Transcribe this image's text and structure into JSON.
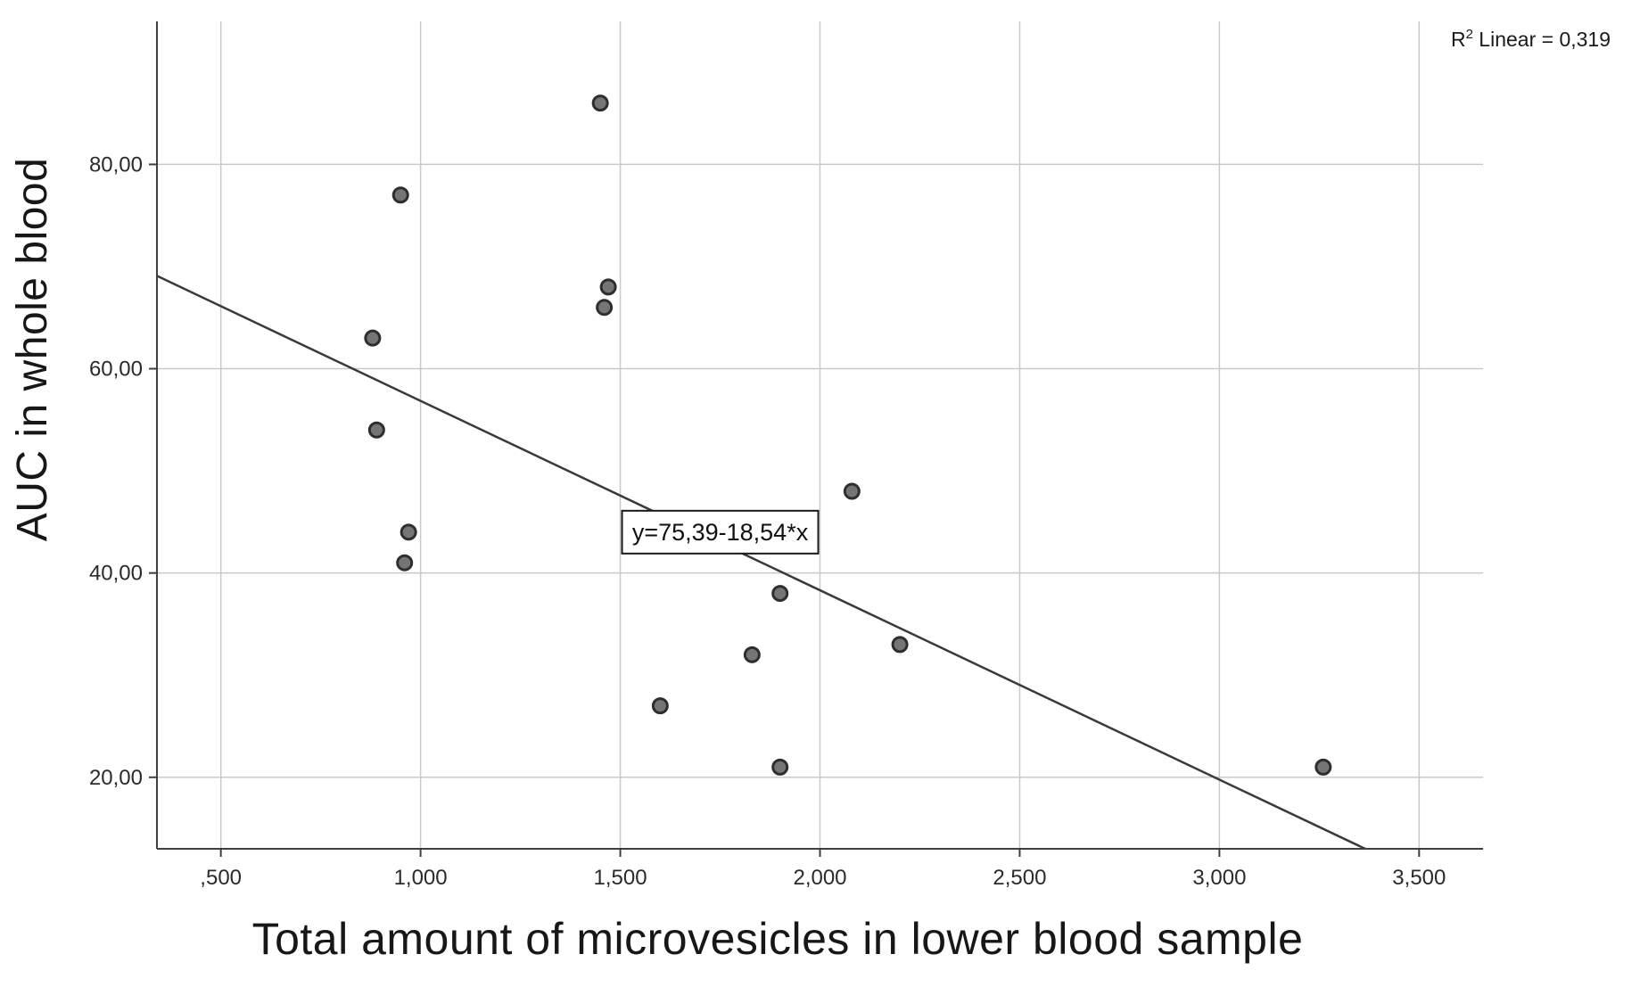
{
  "figure": {
    "background": "#ffffff"
  },
  "chart_data": {
    "type": "scatter",
    "title": "",
    "xlabel": "Total amount of microvesicles in lower blood sample",
    "ylabel": "AUC in whole blood",
    "xlim": [
      0.34,
      3.66
    ],
    "ylim": [
      13,
      94
    ],
    "grid": true,
    "legend": "none",
    "x_ticks": {
      "values": [
        0.5,
        1.0,
        1.5,
        2.0,
        2.5,
        3.0,
        3.5
      ],
      "labels": [
        ",500",
        "1,000",
        "1,500",
        "2,000",
        "2,500",
        "3,000",
        "3,500"
      ]
    },
    "y_ticks": {
      "values": [
        20,
        40,
        60,
        80
      ],
      "labels": [
        "20,00",
        "40,00",
        "60,00",
        "80,00"
      ]
    },
    "points": [
      [
        0.88,
        63
      ],
      [
        0.89,
        54
      ],
      [
        0.95,
        77
      ],
      [
        0.97,
        44
      ],
      [
        0.96,
        41
      ],
      [
        1.45,
        86
      ],
      [
        1.46,
        66
      ],
      [
        1.47,
        68
      ],
      [
        1.6,
        27
      ],
      [
        1.83,
        32
      ],
      [
        1.9,
        38
      ],
      [
        1.9,
        21
      ],
      [
        2.08,
        48
      ],
      [
        2.2,
        33
      ],
      [
        3.26,
        21
      ]
    ],
    "regression": {
      "intercept": 75.39,
      "slope": -18.54,
      "label": "y=75,39-18,54*x",
      "label_pos": [
        1.75,
        44
      ]
    },
    "annotation": {
      "base": "R",
      "sup": "2",
      "rest": " Linear = 0,319"
    },
    "colors": {
      "point_fill": "#757575",
      "point_stroke": "#2e2e2e",
      "grid": "#c9c9c9",
      "axis": "#3f3f3f",
      "line": "#3a3a3a",
      "text": "#1f1f1f",
      "equation_box_border": "#1a1a1a",
      "equation_box_fill": "#ffffff"
    }
  }
}
